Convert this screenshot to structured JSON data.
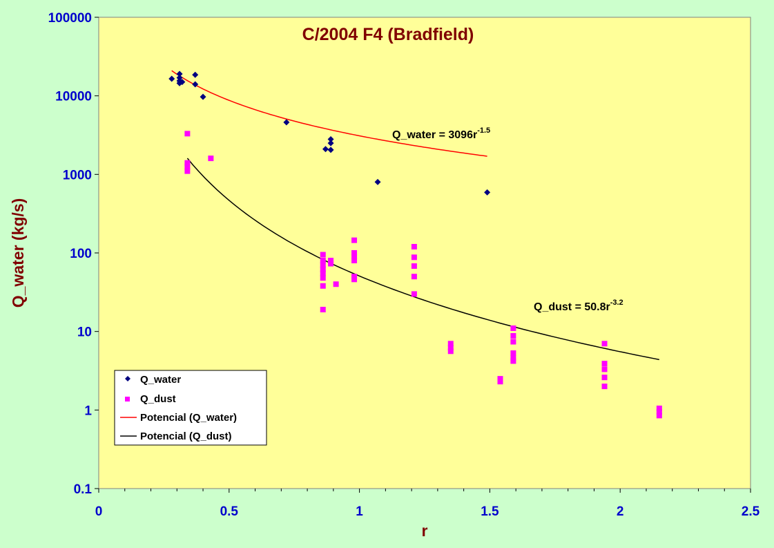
{
  "chart_data": {
    "type": "scatter",
    "title": "C/2004 F4 (Bradfield)",
    "xlabel": "r",
    "ylabel": "Q_water (kg/s)",
    "xlim": [
      0,
      2.5
    ],
    "ylim": [
      0.1,
      100000
    ],
    "yscale": "log",
    "x_ticks": [
      "0",
      "0.5",
      "1",
      "1.5",
      "2",
      "2.5"
    ],
    "y_ticks": [
      "0.1",
      "1",
      "10",
      "100",
      "1000",
      "10000",
      "100000"
    ],
    "legend_position": "bottom-left",
    "series": [
      {
        "name": "Q_water",
        "marker": "diamond",
        "color": "#000080",
        "points": [
          [
            0.28,
            16500
          ],
          [
            0.31,
            19000
          ],
          [
            0.31,
            17000
          ],
          [
            0.31,
            15500
          ],
          [
            0.31,
            14500
          ],
          [
            0.32,
            15000
          ],
          [
            0.37,
            18500
          ],
          [
            0.37,
            14000
          ],
          [
            0.4,
            9700
          ],
          [
            0.72,
            4600
          ],
          [
            0.87,
            2100
          ],
          [
            0.89,
            2800
          ],
          [
            0.89,
            2500
          ],
          [
            0.89,
            2050
          ],
          [
            1.07,
            800
          ],
          [
            1.49,
            590
          ]
        ]
      },
      {
        "name": "Q_dust",
        "marker": "square",
        "color": "#ff00ff",
        "points": [
          [
            0.34,
            3300
          ],
          [
            0.34,
            1400
          ],
          [
            0.34,
            1250
          ],
          [
            0.34,
            1100
          ],
          [
            0.43,
            1600
          ],
          [
            0.86,
            95
          ],
          [
            0.86,
            80
          ],
          [
            0.86,
            70
          ],
          [
            0.86,
            62
          ],
          [
            0.86,
            55
          ],
          [
            0.86,
            48
          ],
          [
            0.86,
            38
          ],
          [
            0.86,
            19
          ],
          [
            0.89,
            80
          ],
          [
            0.89,
            73
          ],
          [
            0.91,
            40
          ],
          [
            0.98,
            145
          ],
          [
            0.98,
            100
          ],
          [
            0.98,
            90
          ],
          [
            0.98,
            80
          ],
          [
            0.98,
            50
          ],
          [
            0.98,
            46
          ],
          [
            1.21,
            120
          ],
          [
            1.21,
            88
          ],
          [
            1.21,
            68
          ],
          [
            1.21,
            50
          ],
          [
            1.21,
            30
          ],
          [
            1.35,
            7
          ],
          [
            1.35,
            6.2
          ],
          [
            1.35,
            5.6
          ],
          [
            1.54,
            2.5
          ],
          [
            1.54,
            2.3
          ],
          [
            1.59,
            11
          ],
          [
            1.59,
            8.8
          ],
          [
            1.59,
            7.4
          ],
          [
            1.59,
            5.3
          ],
          [
            1.59,
            4.6
          ],
          [
            1.59,
            4.2
          ],
          [
            1.94,
            7
          ],
          [
            1.94,
            3.9
          ],
          [
            1.94,
            3.3
          ],
          [
            1.94,
            2.6
          ],
          [
            1.94,
            2.0
          ],
          [
            2.15,
            1.05
          ],
          [
            2.15,
            0.95
          ],
          [
            2.15,
            0.85
          ]
        ]
      },
      {
        "name": "Potencial (Q_water)",
        "type": "power-fit",
        "color": "#ff0000",
        "a": 3096,
        "b": -1.5,
        "x_range": [
          0.28,
          1.49
        ]
      },
      {
        "name": "Potencial (Q_dust)",
        "type": "power-fit",
        "color": "#000000",
        "a": 50.8,
        "b": -3.2,
        "x_range": [
          0.34,
          2.15
        ]
      }
    ],
    "annotations": [
      {
        "base": "Q_water = 3096r",
        "exp": "-1.5"
      },
      {
        "base": "Q_dust = 50.8r",
        "exp": "-3.2"
      }
    ]
  },
  "colors": {
    "background": "#ccffcc",
    "plot_area": "#ffff99",
    "title": "#800000",
    "ticks": "#0000cc"
  }
}
